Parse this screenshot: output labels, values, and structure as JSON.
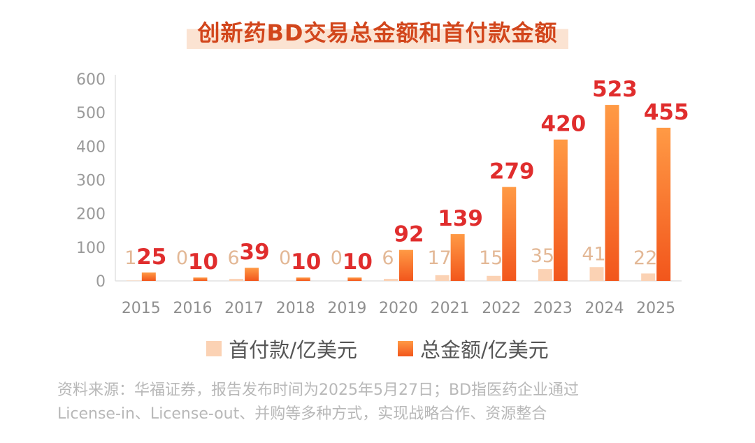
{
  "chart_data": {
    "type": "bar",
    "title": "创新药BD交易总金额和首付款金额",
    "categories": [
      "2015",
      "2016",
      "2017",
      "2018",
      "2019",
      "2020",
      "2021",
      "2022",
      "2023",
      "2024",
      "2025"
    ],
    "series": [
      {
        "name": "首付款/亿美元",
        "values": [
          1,
          0,
          6,
          0,
          0,
          6,
          17,
          15,
          35,
          41,
          22
        ]
      },
      {
        "name": "总金额/亿美元",
        "values": [
          25,
          10,
          39,
          10,
          10,
          92,
          139,
          279,
          420,
          523,
          455
        ]
      }
    ],
    "y_ticks": [
      "0",
      "100",
      "200",
      "300",
      "400",
      "500",
      "600"
    ],
    "ylim": [
      0,
      600
    ],
    "grid": false,
    "legend_position": "bottom"
  },
  "colors": {
    "upfront": "#fbd2b4",
    "total_top": "#ff9a45",
    "total_bottom": "#f2561c",
    "upfront_label": "#e3b896",
    "total_label": "#e02d2d",
    "title": "#d2461c"
  },
  "footnote": {
    "line1": "资料来源：华福证券，报告发布时间为2025年5月27日；BD指医药企业通过",
    "line2": "License-in、License-out、并购等多种方式，实现战略合作、资源整合"
  }
}
